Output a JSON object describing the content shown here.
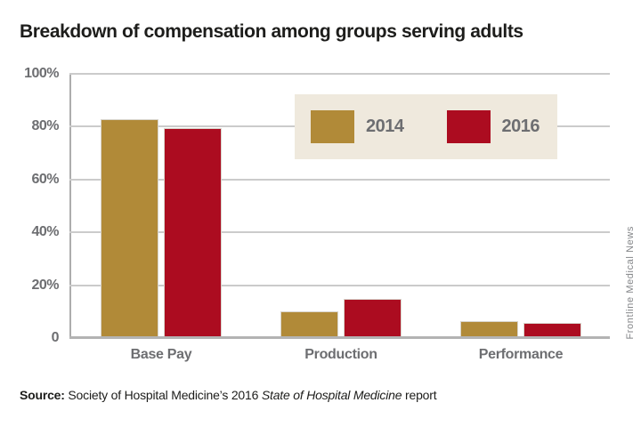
{
  "title": "Breakdown of compensation among groups serving adults",
  "attribution": "Frontline Medical News",
  "source": {
    "label": "Source:",
    "before_italic": " Society of Hospital Medicine’s 2016 ",
    "italic": "State of Hospital Medicine",
    "after_italic": " report"
  },
  "colors": {
    "series_2014": "#B18A38",
    "series_2016": "#AC0C20",
    "legend_background": "#EFE9DD",
    "gridline": "#CBCBCB",
    "axis": "#ADADAD",
    "label_gray": "#6D6E71",
    "text_black": "#1D1D1B"
  },
  "chart_data": {
    "type": "bar",
    "title": "Breakdown of compensation among groups serving adults",
    "categories": [
      "Base Pay",
      "Production",
      "Performance"
    ],
    "series": [
      {
        "name": "2014",
        "color": "#B18A38",
        "values": [
          83,
          10.2,
          6.4
        ]
      },
      {
        "name": "2016",
        "color": "#AC0C20",
        "values": [
          79.3,
          14.7,
          5.7
        ]
      }
    ],
    "xlabel": "",
    "ylabel": "",
    "unit": "%",
    "ylim": [
      0,
      100
    ],
    "yticks": [
      100,
      80,
      60,
      40,
      20,
      0
    ],
    "ytick_labels": [
      "100%",
      "80%",
      "60%",
      "40%",
      "20%",
      "0"
    ],
    "grid": true,
    "legend_position": "top-right-inside"
  }
}
